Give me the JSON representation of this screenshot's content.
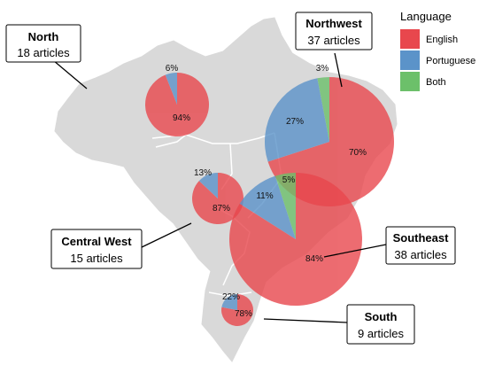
{
  "legend": {
    "title": "Language",
    "items": [
      {
        "label": "English",
        "color": "#e8474d"
      },
      {
        "label": "Portuguese",
        "color": "#5b93c9"
      },
      {
        "label": "Both",
        "color": "#6cc06a"
      }
    ]
  },
  "regions": [
    {
      "id": "north",
      "name": "North",
      "count_label": "18 articles",
      "articles": 18,
      "shares": [
        {
          "lang": "English",
          "pct": 94
        },
        {
          "lang": "Portuguese",
          "pct": 6
        }
      ]
    },
    {
      "id": "northeast",
      "name": "Northwest",
      "count_label": "37 articles",
      "articles": 37,
      "shares": [
        {
          "lang": "English",
          "pct": 70
        },
        {
          "lang": "Portuguese",
          "pct": 27
        },
        {
          "lang": "Both",
          "pct": 3
        }
      ]
    },
    {
      "id": "central-west",
      "name": "Central West",
      "count_label": "15 articles",
      "articles": 15,
      "shares": [
        {
          "lang": "English",
          "pct": 87
        },
        {
          "lang": "Portuguese",
          "pct": 13
        }
      ]
    },
    {
      "id": "southeast",
      "name": "Southeast",
      "count_label": "38 articles",
      "articles": 38,
      "shares": [
        {
          "lang": "English",
          "pct": 84
        },
        {
          "lang": "Portuguese",
          "pct": 11
        },
        {
          "lang": "Both",
          "pct": 5
        }
      ]
    },
    {
      "id": "south",
      "name": "South",
      "count_label": "9 articles",
      "articles": 9,
      "shares": [
        {
          "lang": "English",
          "pct": 78
        },
        {
          "lang": "Portuguese",
          "pct": 22
        }
      ]
    }
  ],
  "colors": {
    "map_fill": "#d9d9d9",
    "map_border": "#ffffff"
  }
}
